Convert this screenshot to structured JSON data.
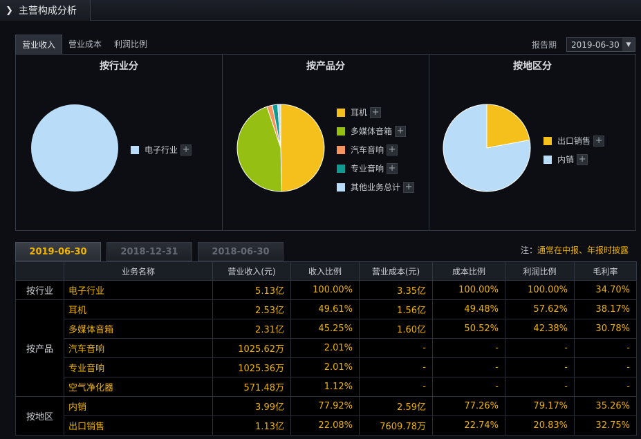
{
  "header": {
    "title": "主营构成分析"
  },
  "top_tabs": [
    {
      "label": "营业收入",
      "active": true
    },
    {
      "label": "营业成本",
      "active": false
    },
    {
      "label": "利润比例",
      "active": false
    }
  ],
  "report": {
    "label": "报告期",
    "value": "2019-06-30"
  },
  "chart_data": [
    {
      "type": "pie",
      "title": "按行业分",
      "slices": [
        {
          "label": "电子行业",
          "value": 100.0,
          "color": "#b9dcf8"
        }
      ]
    },
    {
      "type": "pie",
      "title": "按产品分",
      "slices": [
        {
          "label": "耳机",
          "value": 49.61,
          "color": "#f5bf1c"
        },
        {
          "label": "多媒体音箱",
          "value": 45.25,
          "color": "#95bf13"
        },
        {
          "label": "汽车音响",
          "value": 2.01,
          "color": "#f69460"
        },
        {
          "label": "专业音响",
          "value": 2.01,
          "color": "#119a92"
        },
        {
          "label": "其他业务总计",
          "value": 1.12,
          "color": "#b9dcf8"
        }
      ]
    },
    {
      "type": "pie",
      "title": "按地区分",
      "slices": [
        {
          "label": "出口销售",
          "value": 22.08,
          "color": "#f5bf1c"
        },
        {
          "label": "内销",
          "value": 77.92,
          "color": "#b9dcf8"
        }
      ]
    }
  ],
  "period_tabs": [
    {
      "label": "2019-06-30",
      "active": true
    },
    {
      "label": "2018-12-31",
      "active": false
    },
    {
      "label": "2018-06-30",
      "active": false
    }
  ],
  "note": {
    "prefix": "注：",
    "text": "通常在中报、年报时披露"
  },
  "table": {
    "headers": [
      "",
      "业务名称",
      "营业收入(元)",
      "收入比例",
      "营业成本(元)",
      "成本比例",
      "利润比例",
      "毛利率"
    ],
    "groups": [
      {
        "label": "按行业",
        "rows": [
          {
            "name": "电子行业",
            "cells": [
              "5.13亿",
              "100.00%",
              "3.35亿",
              "100.00%",
              "100.00%",
              "34.70%"
            ]
          }
        ]
      },
      {
        "label": "按产品",
        "rows": [
          {
            "name": "耳机",
            "cells": [
              "2.53亿",
              "49.61%",
              "1.56亿",
              "49.48%",
              "57.62%",
              "38.17%"
            ]
          },
          {
            "name": "多媒体音箱",
            "cells": [
              "2.31亿",
              "45.25%",
              "1.60亿",
              "50.52%",
              "42.38%",
              "30.78%"
            ]
          },
          {
            "name": "汽车音响",
            "cells": [
              "1025.62万",
              "2.01%",
              "-",
              "-",
              "-",
              "-"
            ]
          },
          {
            "name": "专业音响",
            "cells": [
              "1025.36万",
              "2.01%",
              "-",
              "-",
              "-",
              "-"
            ]
          },
          {
            "name": "空气净化器",
            "cells": [
              "571.48万",
              "1.12%",
              "-",
              "-",
              "-",
              "-"
            ]
          }
        ]
      },
      {
        "label": "按地区",
        "rows": [
          {
            "name": "内销",
            "cells": [
              "3.99亿",
              "77.92%",
              "2.59亿",
              "77.26%",
              "79.17%",
              "35.26%"
            ]
          },
          {
            "name": "出口销售",
            "cells": [
              "1.13亿",
              "22.08%",
              "7609.78万",
              "22.74%",
              "20.83%",
              "32.75%"
            ]
          }
        ]
      }
    ]
  }
}
